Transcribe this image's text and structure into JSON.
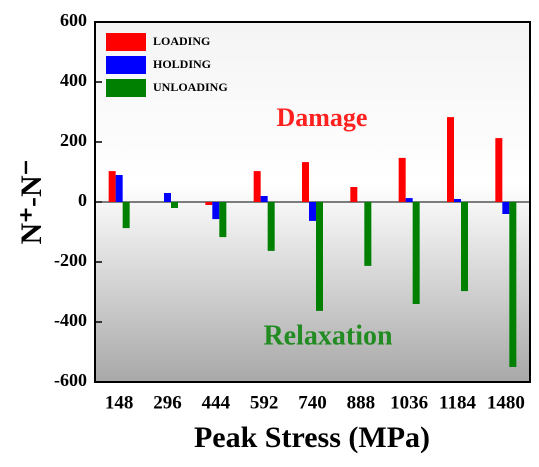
{
  "chart_data": {
    "type": "bar",
    "xlabel": "Peak Stress (MPa)",
    "ylabel": "N⁺-N⁻",
    "categories": [
      "148",
      "296",
      "444",
      "592",
      "740",
      "888",
      "1036",
      "1184",
      "1480"
    ],
    "series": [
      {
        "name": "LOADING",
        "color": "#ff0000",
        "values": [
          103,
          0,
          -10,
          103,
          133,
          50,
          147,
          283,
          213
        ]
      },
      {
        "name": "HOLDING",
        "color": "#0000ff",
        "values": [
          90,
          30,
          -57,
          20,
          -63,
          0,
          13,
          10,
          -40
        ]
      },
      {
        "name": "UNLOADING",
        "color": "#008000",
        "values": [
          -87,
          -20,
          -117,
          -163,
          -363,
          -213,
          -340,
          -297,
          -550
        ]
      }
    ],
    "annotations": [
      {
        "text": "Damage",
        "color": "#ff2020"
      },
      {
        "text": "Relaxation",
        "color": "#228b22"
      }
    ],
    "ylim": [
      -600,
      600
    ],
    "yticks": [
      -600,
      -400,
      -200,
      0,
      200,
      400,
      600
    ],
    "legend": "upper left"
  }
}
